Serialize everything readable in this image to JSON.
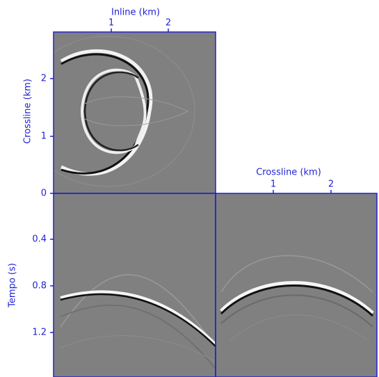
{
  "top_axis": {
    "label": "Inline (km)",
    "ticks": [
      "1",
      "2"
    ]
  },
  "left_axis": {
    "label": "Crossline (km)",
    "ticks": [
      "2",
      "1",
      "0"
    ]
  },
  "time_axis": {
    "label": "Tempo (s)",
    "ticks": [
      "0.4",
      "0.8",
      "1.2"
    ]
  },
  "right_axis": {
    "label": "Crossline (km)",
    "ticks": [
      "1",
      "2"
    ]
  }
}
